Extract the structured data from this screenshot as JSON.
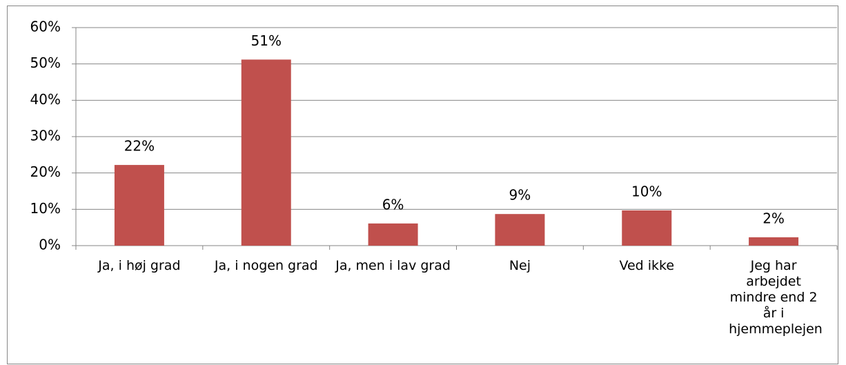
{
  "chart_data": {
    "type": "bar",
    "categories": [
      "Ja, i høj grad",
      "Ja, i nogen grad",
      "Ja, men i lav grad",
      "Nej",
      "Ved ikke",
      "Jeg har arbejdet mindre end 2 år i hjemmeplejen"
    ],
    "values": [
      22.2,
      51.2,
      6.1,
      8.7,
      9.7,
      2.3
    ],
    "value_labels": [
      "22%",
      "51%",
      "6%",
      "9%",
      "10%",
      "2%"
    ],
    "color": "#c0504d",
    "ylim": [
      0,
      60
    ],
    "yticks": [
      {
        "value": 0,
        "label": "0%"
      },
      {
        "value": 10,
        "label": "10%"
      },
      {
        "value": 20,
        "label": "20%"
      },
      {
        "value": 30,
        "label": "30%"
      },
      {
        "value": 40,
        "label": "40%"
      },
      {
        "value": 50,
        "label": "50%"
      },
      {
        "value": 60,
        "label": "60%"
      }
    ],
    "grid": true
  }
}
